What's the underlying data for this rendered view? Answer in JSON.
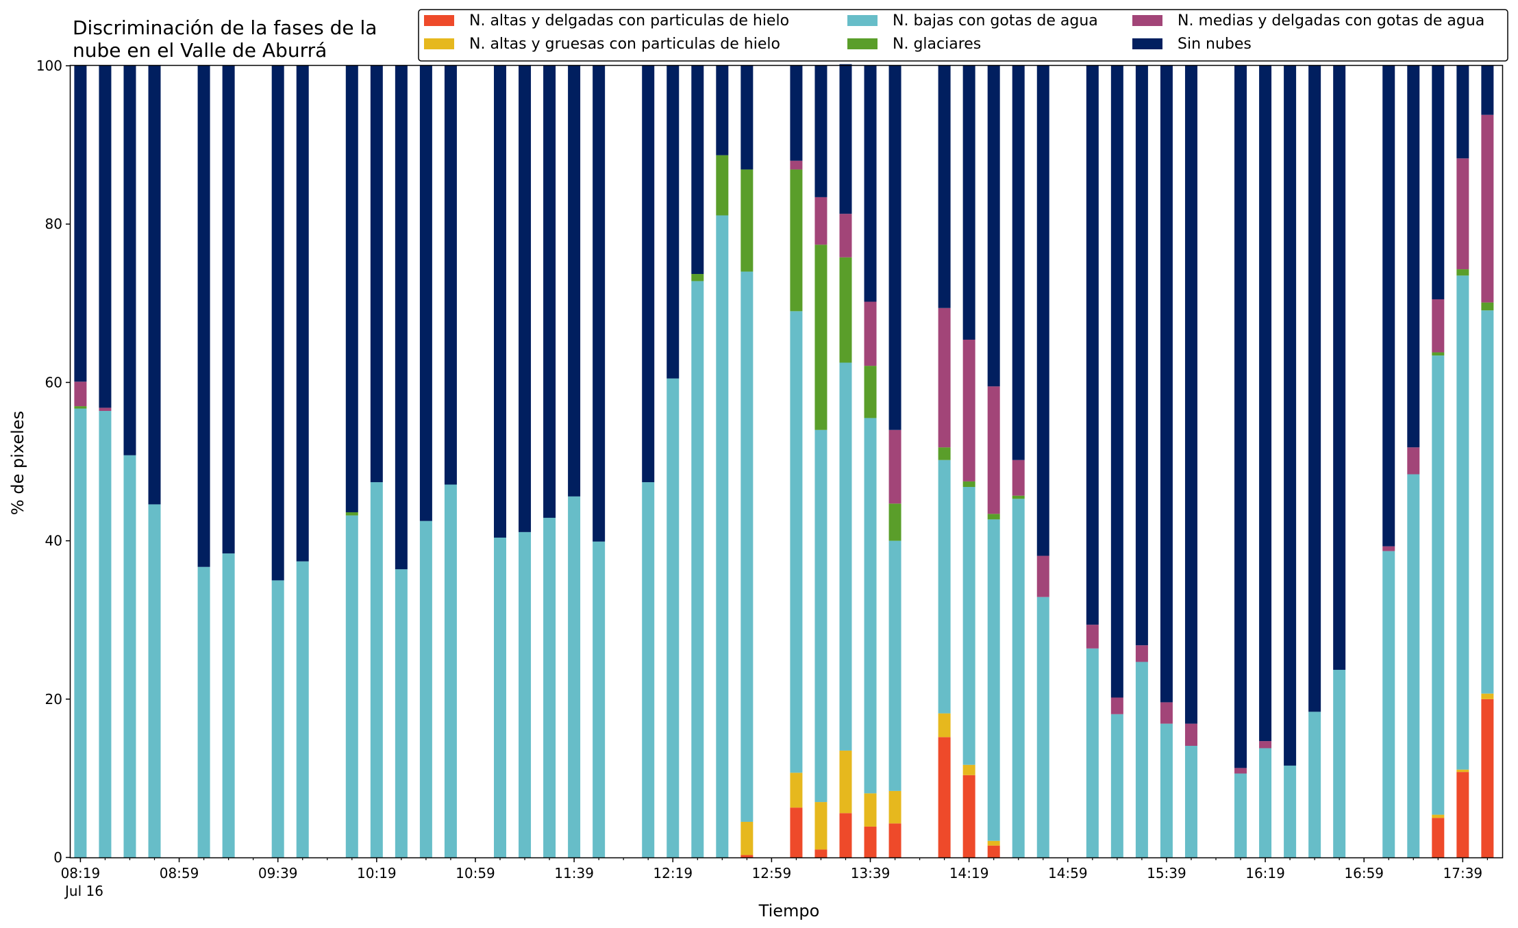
{
  "chart_data": {
    "type": "bar",
    "stacked": true,
    "title": [
      "Discriminación de la fases de la",
      "nube en el Valle de Aburrá"
    ],
    "xlabel": "Tiempo",
    "ylabel": "% de pixeles",
    "ylim": [
      0,
      100
    ],
    "yticks": [
      "0",
      "20",
      "40",
      "60",
      "80",
      "100"
    ],
    "xlim": [
      "08:15",
      "17:55"
    ],
    "xticks": [
      "08:19",
      "08:59",
      "09:39",
      "10:19",
      "10:59",
      "11:39",
      "12:19",
      "12:59",
      "13:39",
      "14:19",
      "14:59",
      "15:39",
      "16:19",
      "16:59",
      "17:39"
    ],
    "xtick_sublabel": "Jul 16",
    "grid": false,
    "legend": {
      "placement": "top-right",
      "columns": 3
    },
    "categories": [
      "08:19",
      "08:29",
      "08:39",
      "08:49",
      "09:09",
      "09:19",
      "09:39",
      "09:49",
      "10:09",
      "10:19",
      "10:29",
      "10:39",
      "10:49",
      "11:09",
      "11:19",
      "11:29",
      "11:39",
      "11:49",
      "12:09",
      "12:19",
      "12:29",
      "12:39",
      "12:49",
      "13:09",
      "13:19",
      "13:29",
      "13:39",
      "13:49",
      "14:09",
      "14:19",
      "14:29",
      "14:39",
      "14:49",
      "15:09",
      "15:19",
      "15:29",
      "15:39",
      "15:49",
      "16:09",
      "16:19",
      "16:29",
      "16:39",
      "16:49",
      "17:09",
      "17:19",
      "17:29",
      "17:39",
      "17:49"
    ],
    "series": [
      {
        "name": "N. altas y delgadas con particulas de hielo",
        "color": "#ee4a2a",
        "values": [
          0,
          0,
          0,
          0,
          0,
          0,
          0,
          0,
          0,
          0,
          0,
          0,
          0,
          0,
          0,
          0,
          0,
          0,
          0,
          0,
          0,
          0,
          0.3,
          6.3,
          1,
          5.6,
          3.9,
          4.3,
          15.2,
          10.4,
          1.5,
          0,
          0,
          0,
          0,
          0,
          0,
          0,
          0,
          0,
          0,
          0,
          0,
          0,
          0,
          5,
          10.8,
          20
        ]
      },
      {
        "name": "N. altas y gruesas con particulas de hielo",
        "color": "#e6b81e",
        "values": [
          0,
          0,
          0,
          0,
          0,
          0,
          0,
          0,
          0,
          0,
          0,
          0,
          0,
          0,
          0,
          0,
          0,
          0,
          0,
          0,
          0,
          0,
          4.2,
          4.4,
          6,
          7.9,
          4.2,
          4.1,
          3,
          1.3,
          0.6,
          0,
          0,
          0,
          0,
          0,
          0,
          0,
          0,
          0,
          0,
          0,
          0,
          0,
          0,
          0.4,
          0.3,
          0.7
        ]
      },
      {
        "name": "N. bajas con gotas de agua",
        "color": "#67bdc8",
        "values": [
          56.7,
          56.4,
          50.8,
          44.6,
          36.7,
          38.4,
          35,
          37.4,
          43.2,
          47.4,
          36.4,
          42.5,
          47.1,
          40.4,
          41.1,
          42.9,
          45.6,
          39.9,
          47.4,
          60.5,
          72.8,
          81.1,
          69.5,
          58.3,
          47,
          49,
          47.4,
          31.6,
          32,
          35.1,
          40.6,
          45.3,
          32.9,
          26.4,
          18.1,
          24.7,
          16.9,
          14.1,
          10.6,
          13.8,
          11.6,
          18.4,
          23.7,
          38.7,
          48.4,
          58,
          62.4,
          48.4
        ]
      },
      {
        "name": "N. glaciares",
        "color": "#5a9e2a",
        "values": [
          0.3,
          0,
          0,
          0,
          0,
          0,
          0,
          0,
          0.4,
          0,
          0,
          0,
          0,
          0,
          0,
          0,
          0,
          0,
          0,
          0,
          0.9,
          7.6,
          12.9,
          17.9,
          23.4,
          13.3,
          6.6,
          4.7,
          1.6,
          0.7,
          0.7,
          0.4,
          0,
          0,
          0,
          0,
          0,
          0,
          0,
          0,
          0,
          0,
          0,
          0,
          0,
          0.4,
          0.8,
          1
        ]
      },
      {
        "name": "N. medias y delgadas con gotas de agua",
        "color": "#a24578",
        "values": [
          3.1,
          0.4,
          0,
          0,
          0,
          0,
          0,
          0,
          0,
          0,
          0,
          0,
          0,
          0,
          0,
          0,
          0,
          0,
          0,
          0,
          0,
          0,
          0,
          1.1,
          6,
          5.5,
          8.1,
          9.3,
          17.6,
          17.9,
          16.1,
          4.5,
          5.2,
          3,
          2.1,
          2.1,
          2.7,
          2.8,
          0.7,
          0.9,
          0,
          0,
          0,
          0.6,
          3.4,
          6.7,
          14,
          23.7
        ]
      },
      {
        "name": "Sin nubes",
        "color": "#011f5f",
        "values": [
          39.9,
          43.2,
          49.2,
          55.4,
          63.3,
          61.6,
          65,
          62.6,
          56.4,
          52.6,
          63.6,
          57.5,
          52.9,
          59.6,
          58.9,
          57.1,
          54.4,
          60.1,
          52.6,
          39.5,
          26.3,
          11.3,
          13.1,
          12,
          16.6,
          18.9,
          29.8,
          46,
          30.6,
          34.6,
          40.5,
          49.8,
          61.9,
          70.6,
          79.8,
          73.2,
          80.4,
          83.1,
          88.7,
          85.3,
          88.4,
          81.6,
          76.3,
          60.7,
          48.2,
          29.5,
          11.7,
          6.2
        ]
      }
    ]
  }
}
